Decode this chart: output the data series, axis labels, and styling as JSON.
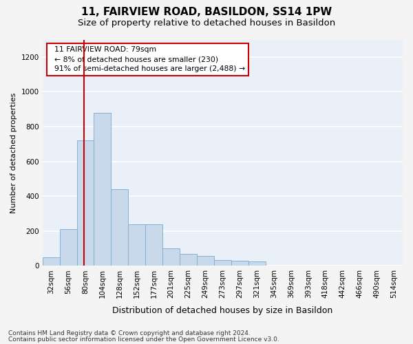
{
  "title1": "11, FAIRVIEW ROAD, BASILDON, SS14 1PW",
  "title2": "Size of property relative to detached houses in Basildon",
  "xlabel": "Distribution of detached houses by size in Basildon",
  "ylabel": "Number of detached properties",
  "footnote1": "Contains HM Land Registry data © Crown copyright and database right 2024.",
  "footnote2": "Contains public sector information licensed under the Open Government Licence v3.0.",
  "bar_labels": [
    "32sqm",
    "56sqm",
    "80sqm",
    "104sqm",
    "128sqm",
    "152sqm",
    "177sqm",
    "201sqm",
    "225sqm",
    "249sqm",
    "273sqm",
    "297sqm",
    "321sqm",
    "345sqm",
    "369sqm",
    "393sqm",
    "418sqm",
    "442sqm",
    "466sqm",
    "490sqm",
    "514sqm"
  ],
  "bar_values": [
    50,
    210,
    720,
    880,
    440,
    240,
    240,
    100,
    70,
    55,
    35,
    30,
    25,
    0,
    0,
    0,
    0,
    0,
    0,
    0,
    0
  ],
  "bar_color": "#c9d9ec",
  "bar_edge_color": "#7aaad0",
  "property_line_x": 1.92,
  "property_line_color": "#cc0000",
  "annotation_text": "  11 FAIRVIEW ROAD: 79sqm\n  ← 8% of detached houses are smaller (230)\n  91% of semi-detached houses are larger (2,488) →",
  "annotation_box_color": "#ffffff",
  "annotation_box_edge_color": "#cc0000",
  "ylim": [
    0,
    1300
  ],
  "yticks": [
    0,
    200,
    400,
    600,
    800,
    1000,
    1200
  ],
  "background_color": "#eaf0f8",
  "grid_color": "#ffffff",
  "title1_fontsize": 11,
  "title2_fontsize": 9.5,
  "xlabel_fontsize": 9,
  "ylabel_fontsize": 8,
  "tick_fontsize": 7.5,
  "annotation_fontsize": 7.8,
  "footnote_fontsize": 6.5
}
